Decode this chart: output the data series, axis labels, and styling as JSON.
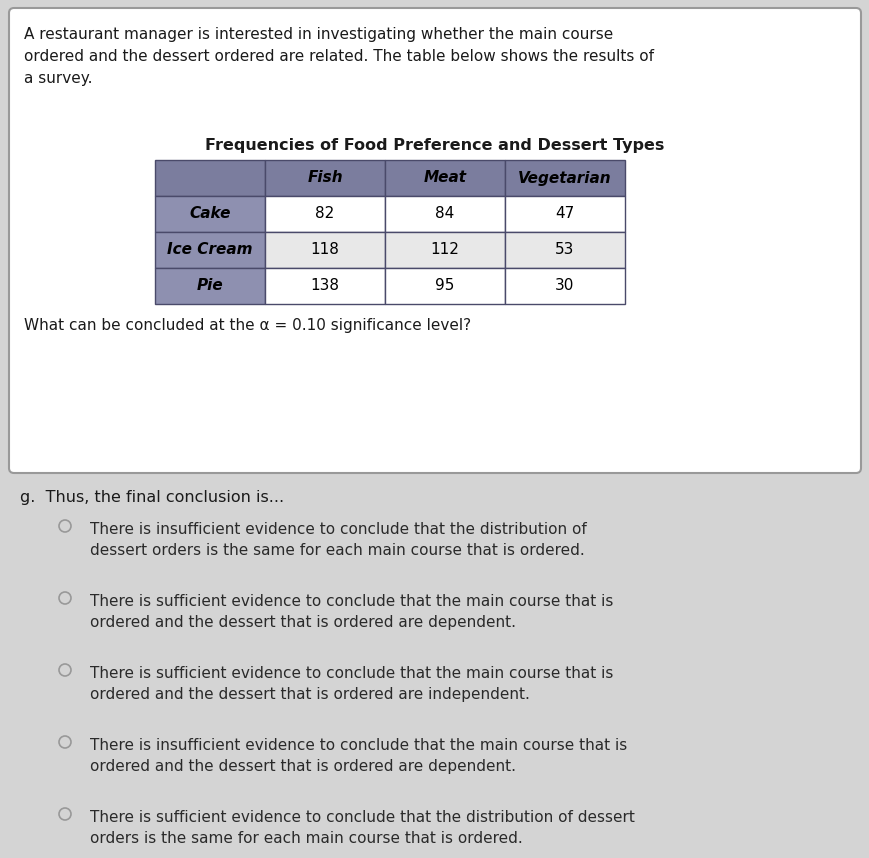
{
  "intro_text": "A restaurant manager is interested in investigating whether the main course\nordered and the dessert ordered are related. The table below shows the results of\na survey.",
  "table_title": "Frequencies of Food Preference and Dessert Types",
  "col_headers": [
    "",
    "Fish",
    "Meat",
    "Vegetarian"
  ],
  "row_headers": [
    "Cake",
    "Ice Cream",
    "Pie"
  ],
  "table_data": [
    [
      82,
      84,
      47
    ],
    [
      118,
      112,
      53
    ],
    [
      138,
      95,
      30
    ]
  ],
  "alpha_text": "What can be concluded at the α = 0.10 significance level?",
  "conclusion_label": "g.  Thus, the final conclusion is...",
  "options": [
    "There is insufficient evidence to conclude that the distribution of\ndessert orders is the same for each main course that is ordered.",
    "There is sufficient evidence to conclude that the main course that is\nordered and the dessert that is ordered are dependent.",
    "There is sufficient evidence to conclude that the main course that is\nordered and the dessert that is ordered are independent.",
    "There is insufficient evidence to conclude that the main course that is\nordered and the dessert that is ordered are dependent.",
    "There is sufficient evidence to conclude that the distribution of dessert\norders is the same for each main course that is ordered."
  ],
  "bg_color": "#d4d4d4",
  "box_bg": "#ffffff",
  "header_col_bg": "#7b7d9e",
  "row_label_bg": "#8e90b0",
  "cell_bg_odd": "#ffffff",
  "cell_bg_even": "#e8e8e8",
  "text_color": "#1a1a1a",
  "table_border": "#4a4a6a",
  "radio_color": "#999999",
  "option_text_color": "#2a2a2a"
}
